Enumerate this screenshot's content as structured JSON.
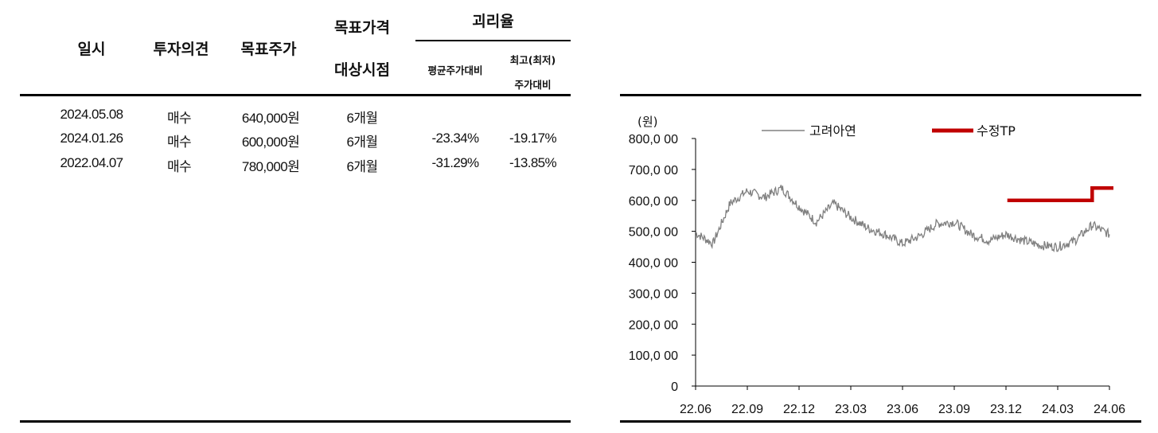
{
  "table": {
    "headers": {
      "date": "일시",
      "opinion": "투자의견",
      "target_price": "목표주가",
      "target_horizon_line1": "목표가격",
      "target_horizon_line2": "대상시점",
      "gap": "괴리율",
      "gap_avg": "평균주가대비",
      "gap_max_line1": "최고(최저)",
      "gap_max_line2": "주가대비"
    },
    "rows": [
      {
        "date": "2024.05.08",
        "opinion": "매수",
        "target_price": "640,000원",
        "horizon": "6개월",
        "gap_avg": "",
        "gap_max": ""
      },
      {
        "date": "2024.01.26",
        "opinion": "매수",
        "target_price": "600,000원",
        "horizon": "6개월",
        "gap_avg": "-23.34%",
        "gap_max": "-19.17%"
      },
      {
        "date": "2022.04.07",
        "opinion": "매수",
        "target_price": "780,000원",
        "horizon": "6개월",
        "gap_avg": "-31.29%",
        "gap_max": "-13.85%"
      }
    ]
  },
  "chart_data": {
    "type": "line",
    "unit": "(원)",
    "ylim": [
      0,
      800000
    ],
    "y_ticks": [
      "0",
      "100,0 00",
      "200,0 00",
      "300,0 00",
      "400,0 00",
      "500,0 00",
      "600,0 00",
      "700,0 00",
      "800,0 00"
    ],
    "x_ticks": [
      "22.06",
      "22.09",
      "22.12",
      "23.03",
      "23.06",
      "23.09",
      "23.12",
      "24.03",
      "24.06"
    ],
    "legend_placement": "top",
    "colors": {
      "price": "#808080",
      "tp": "#c00000"
    },
    "series": [
      {
        "name": "고려아연",
        "x": [
          "22.06",
          "22.07",
          "22.08",
          "22.09",
          "22.10",
          "22.11",
          "22.12",
          "23.01",
          "23.02",
          "23.03",
          "23.04",
          "23.05",
          "23.06",
          "23.07",
          "23.08",
          "23.09",
          "23.10",
          "23.11",
          "23.12",
          "24.01",
          "24.02",
          "24.03",
          "24.04",
          "24.05",
          "24.06"
        ],
        "values": [
          495000,
          460000,
          590000,
          630000,
          610000,
          640000,
          580000,
          530000,
          590000,
          545000,
          510000,
          490000,
          460000,
          485000,
          525000,
          530000,
          490000,
          470000,
          490000,
          470000,
          455000,
          450000,
          470000,
          520000,
          490000
        ]
      },
      {
        "name": "수정TP",
        "x": [
          "24.01",
          "24.05",
          "24.05",
          "24.06"
        ],
        "values": [
          600000,
          600000,
          640000,
          640000
        ]
      }
    ]
  }
}
